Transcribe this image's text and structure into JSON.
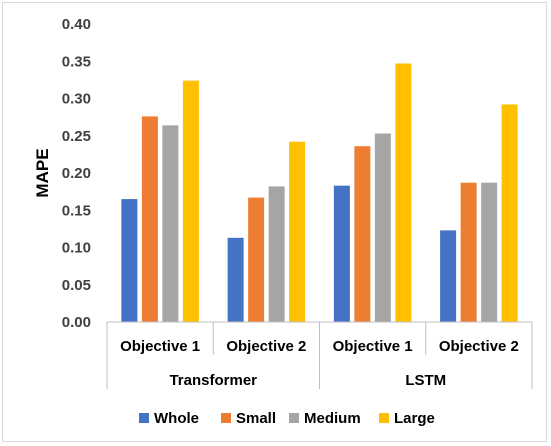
{
  "chart_data": {
    "type": "bar",
    "ylabel": "MAPE",
    "ylim": [
      0,
      0.4
    ],
    "yticks": [
      "0.00",
      "0.05",
      "0.10",
      "0.15",
      "0.20",
      "0.25",
      "0.30",
      "0.35",
      "0.40"
    ],
    "grid": false,
    "legend_position": "bottom",
    "groups": [
      "Transformer",
      "LSTM"
    ],
    "categories": [
      "Objective 1",
      "Objective 2",
      "Objective 1",
      "Objective 2"
    ],
    "series": [
      {
        "name": "Whole",
        "color": "#4472c4",
        "values": [
          0.165,
          0.113,
          0.183,
          0.123
        ]
      },
      {
        "name": "Small",
        "color": "#ed7d31",
        "values": [
          0.276,
          0.167,
          0.236,
          0.187
        ]
      },
      {
        "name": "Medium",
        "color": "#a5a5a5",
        "values": [
          0.264,
          0.182,
          0.253,
          0.187
        ]
      },
      {
        "name": "Large",
        "color": "#ffc000",
        "values": [
          0.324,
          0.242,
          0.347,
          0.292
        ]
      }
    ]
  }
}
